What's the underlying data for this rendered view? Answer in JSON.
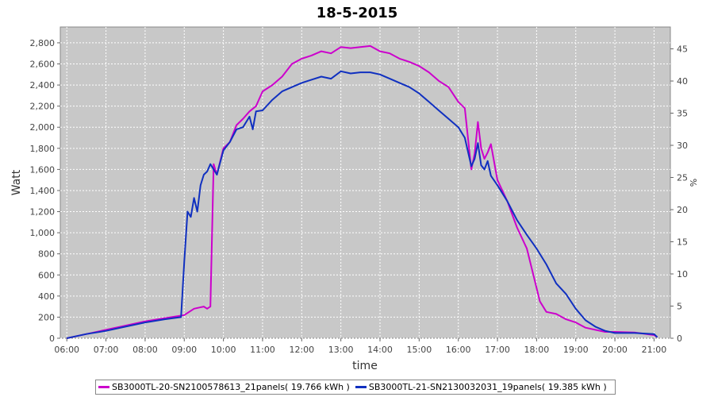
{
  "chart_data": {
    "type": "line",
    "title": "18-5-2015",
    "xlabel": "time",
    "ylabel": "Watt",
    "y2label": "%",
    "xticks": [
      "06:00",
      "07:00",
      "08:00",
      "09:00",
      "10:00",
      "11:00",
      "12:00",
      "13:00",
      "14:00",
      "15:00",
      "16:00",
      "17:00",
      "18:00",
      "19:00",
      "20:00",
      "21:00"
    ],
    "xlim": [
      "05:50",
      "21:25"
    ],
    "ylim": [
      0,
      2950
    ],
    "yticks": [
      "0",
      "200",
      "400",
      "600",
      "800",
      "1,000",
      "1,200",
      "1,400",
      "1,600",
      "1,800",
      "2,000",
      "2,200",
      "2,400",
      "2,600",
      "2,800"
    ],
    "y2lim": [
      0,
      48.4
    ],
    "y2ticks": [
      "0",
      "5",
      "10",
      "15",
      "20",
      "25",
      "30",
      "35",
      "40",
      "45"
    ],
    "grid": true,
    "legend_position": "bottom",
    "series": [
      {
        "name": "SB3000TL-20-SN2100578613_21panels( 19.766 kWh )",
        "color": "#cc00cc",
        "x": [
          "06:00",
          "06:15",
          "06:30",
          "07:00",
          "07:30",
          "08:00",
          "08:30",
          "09:00",
          "09:15",
          "09:30",
          "09:35",
          "09:40",
          "09:45",
          "09:50",
          "10:00",
          "10:10",
          "10:20",
          "10:30",
          "10:40",
          "10:50",
          "11:00",
          "11:15",
          "11:30",
          "11:45",
          "12:00",
          "12:15",
          "12:30",
          "12:45",
          "13:00",
          "13:15",
          "13:30",
          "13:45",
          "14:00",
          "14:15",
          "14:30",
          "14:45",
          "15:00",
          "15:15",
          "15:30",
          "15:45",
          "16:00",
          "16:10",
          "16:20",
          "16:25",
          "16:30",
          "16:35",
          "16:40",
          "16:45",
          "16:50",
          "17:00",
          "17:15",
          "17:30",
          "17:45",
          "17:55",
          "18:05",
          "18:15",
          "18:30",
          "18:45",
          "19:00",
          "19:15",
          "19:30",
          "19:45",
          "20:00",
          "20:30",
          "21:00",
          "21:05"
        ],
        "y": [
          0,
          20,
          40,
          80,
          120,
          160,
          190,
          220,
          280,
          300,
          280,
          300,
          1650,
          1550,
          1800,
          1860,
          2020,
          2080,
          2150,
          2200,
          2340,
          2400,
          2480,
          2600,
          2650,
          2680,
          2720,
          2700,
          2760,
          2750,
          2760,
          2770,
          2720,
          2700,
          2650,
          2620,
          2580,
          2520,
          2440,
          2380,
          2240,
          2180,
          1600,
          1750,
          2050,
          1800,
          1700,
          1760,
          1840,
          1500,
          1300,
          1050,
          850,
          600,
          350,
          250,
          230,
          180,
          150,
          100,
          80,
          60,
          60,
          55,
          30,
          10
        ]
      },
      {
        "name": "SB3000TL-21-SN2130032031_19panels( 19.385 kWh )",
        "color": "#1030c0",
        "x": [
          "06:00",
          "06:15",
          "06:30",
          "07:00",
          "07:30",
          "08:00",
          "08:30",
          "08:55",
          "09:00",
          "09:05",
          "09:10",
          "09:15",
          "09:20",
          "09:25",
          "09:30",
          "09:35",
          "09:40",
          "09:45",
          "09:50",
          "10:00",
          "10:10",
          "10:20",
          "10:30",
          "10:40",
          "10:45",
          "10:50",
          "11:00",
          "11:15",
          "11:30",
          "11:45",
          "12:00",
          "12:15",
          "12:30",
          "12:45",
          "13:00",
          "13:15",
          "13:30",
          "13:45",
          "14:00",
          "14:15",
          "14:30",
          "14:45",
          "15:00",
          "15:15",
          "15:30",
          "15:45",
          "16:00",
          "16:10",
          "16:20",
          "16:25",
          "16:30",
          "16:35",
          "16:40",
          "16:45",
          "16:50",
          "17:00",
          "17:15",
          "17:30",
          "17:45",
          "18:00",
          "18:15",
          "18:30",
          "18:45",
          "19:00",
          "19:15",
          "19:30",
          "19:45",
          "20:00",
          "20:30",
          "21:00",
          "21:05"
        ],
        "y": [
          0,
          20,
          40,
          70,
          110,
          150,
          180,
          200,
          730,
          1200,
          1150,
          1330,
          1200,
          1450,
          1550,
          1580,
          1650,
          1600,
          1550,
          1780,
          1860,
          1980,
          2000,
          2100,
          1980,
          2150,
          2160,
          2260,
          2340,
          2380,
          2420,
          2450,
          2480,
          2460,
          2530,
          2510,
          2520,
          2520,
          2500,
          2460,
          2420,
          2380,
          2320,
          2240,
          2160,
          2080,
          2000,
          1900,
          1630,
          1700,
          1850,
          1640,
          1600,
          1680,
          1540,
          1450,
          1300,
          1120,
          980,
          850,
          700,
          520,
          420,
          280,
          170,
          110,
          70,
          50,
          50,
          40,
          10
        ]
      }
    ]
  }
}
